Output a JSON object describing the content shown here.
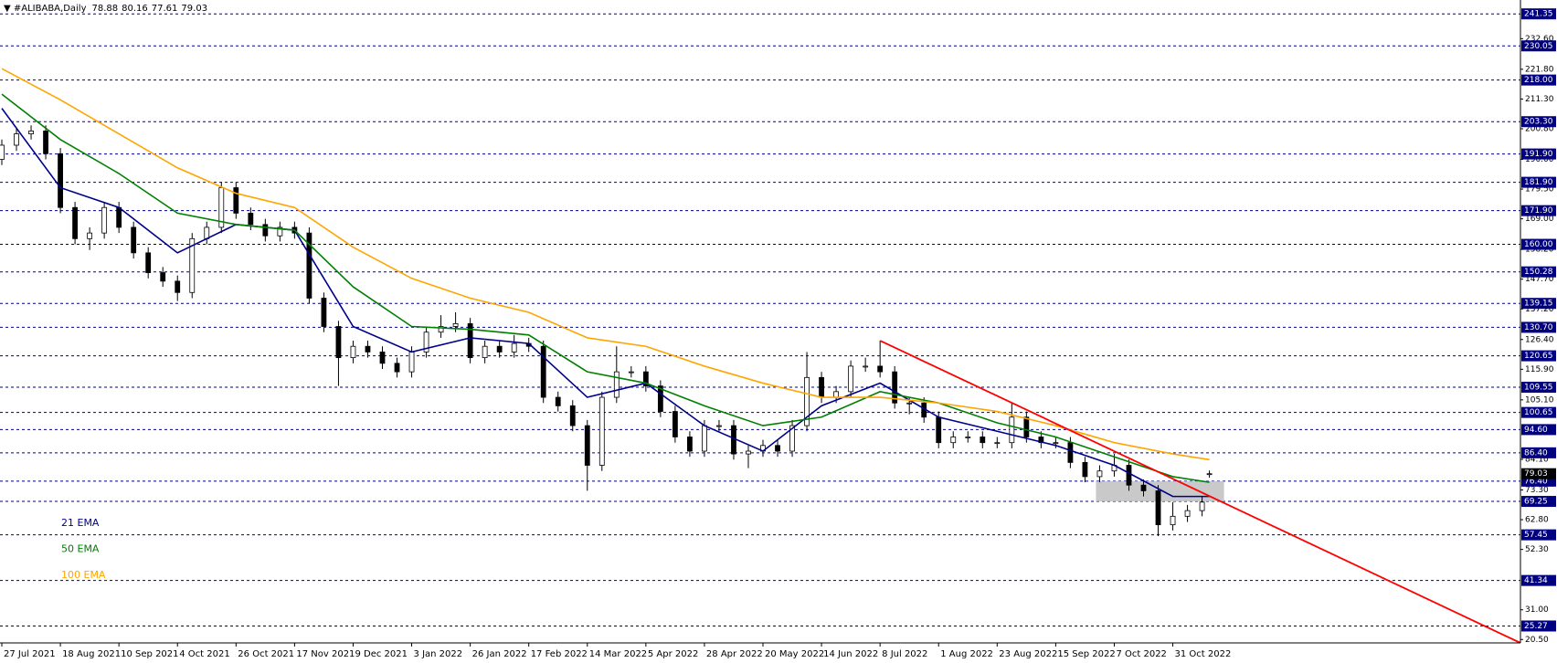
{
  "chart_data": {
    "type": "candlestick",
    "symbol": "#ALIBABA,Daily",
    "ohlc": {
      "open": 78.88,
      "high": 80.16,
      "low": 77.61,
      "close": 79.03
    },
    "last_price": 79.03,
    "xlim": [
      0,
      415
    ],
    "ylim": [
      19.3,
      246.25
    ],
    "xticks": [
      {
        "value": 0,
        "label": "27 Jul 2021"
      },
      {
        "value": 16,
        "label": "18 Aug 2021"
      },
      {
        "value": 32,
        "label": "10 Sep 2021"
      },
      {
        "value": 48,
        "label": "4 Oct 2021"
      },
      {
        "value": 64,
        "label": "26 Oct 2021"
      },
      {
        "value": 80,
        "label": "17 Nov 2021"
      },
      {
        "value": 96,
        "label": "9 Dec 2021"
      },
      {
        "value": 112,
        "label": "3 Jan 2022"
      },
      {
        "value": 128,
        "label": "26 Jan 2022"
      },
      {
        "value": 144,
        "label": "17 Feb 2022"
      },
      {
        "value": 160,
        "label": "14 Mar 2022"
      },
      {
        "value": 176,
        "label": "5 Apr 2022"
      },
      {
        "value": 192,
        "label": "28 Apr 2022"
      },
      {
        "value": 208,
        "label": "20 May 2022"
      },
      {
        "value": 224,
        "label": "14 Jun 2022"
      },
      {
        "value": 240,
        "label": "8 Jul 2022"
      },
      {
        "value": 256,
        "label": "1 Aug 2022"
      },
      {
        "value": 272,
        "label": "23 Aug 2022"
      },
      {
        "value": 288,
        "label": "15 Sep 2022"
      },
      {
        "value": 304,
        "label": "7 Oct 2022"
      },
      {
        "value": 320,
        "label": "31 Oct 2022"
      }
    ],
    "yticks": [
      {
        "value": 232.6,
        "label": "232.60"
      },
      {
        "value": 221.8,
        "label": "221.80"
      },
      {
        "value": 211.3,
        "label": "211.30"
      },
      {
        "value": 200.8,
        "label": "200.80"
      },
      {
        "value": 190,
        "label": "190.00"
      },
      {
        "value": 179.5,
        "label": "179.50"
      },
      {
        "value": 169,
        "label": "169.00"
      },
      {
        "value": 158.2,
        "label": "158.20"
      },
      {
        "value": 147.7,
        "label": "147.70"
      },
      {
        "value": 137.2,
        "label": "137.20"
      },
      {
        "value": 126.4,
        "label": "126.40"
      },
      {
        "value": 115.9,
        "label": "115.90"
      },
      {
        "value": 105.1,
        "label": "105.10"
      },
      {
        "value": 84.1,
        "label": "84.10"
      },
      {
        "value": 73.3,
        "label": "73.30"
      },
      {
        "value": 62.8,
        "label": "62.80"
      },
      {
        "value": 52.3,
        "label": "52.30"
      },
      {
        "value": 31,
        "label": "31.00"
      },
      {
        "value": 20.5,
        "label": "20.50"
      }
    ],
    "levels": [
      241.35,
      230.05,
      {
        "value": 218,
        "label": "218.00"
      },
      {
        "value": 203.3,
        "label": "203.30"
      },
      {
        "value": 191.9,
        "label": "191.90"
      },
      {
        "value": 181.9,
        "label": "181.90"
      },
      {
        "value": 171.9,
        "label": "171.90"
      },
      {
        "value": 160,
        "label": "160.00"
      },
      150.28,
      139.15,
      {
        "value": 130.7,
        "label": "130.70"
      },
      120.65,
      109.55,
      100.65,
      {
        "value": 94.6,
        "label": "94.60"
      },
      {
        "value": 86.4,
        "label": "86.40"
      },
      {
        "value": 76.4,
        "label": "76.40"
      },
      69.25,
      57.45,
      41.34,
      25.27
    ],
    "level_color": "#000080",
    "candles": {
      "x": [
        0,
        4,
        8,
        12,
        16,
        20,
        24,
        28,
        32,
        36,
        40,
        44,
        48,
        52,
        56,
        60,
        64,
        68,
        72,
        76,
        80,
        84,
        88,
        92,
        96,
        100,
        104,
        108,
        112,
        116,
        120,
        124,
        128,
        132,
        136,
        140,
        144,
        148,
        152,
        156,
        160,
        164,
        168,
        172,
        176,
        180,
        184,
        188,
        192,
        196,
        200,
        204,
        208,
        212,
        216,
        220,
        224,
        228,
        232,
        236,
        240,
        244,
        248,
        252,
        256,
        260,
        264,
        268,
        272,
        276,
        280,
        284,
        288,
        292,
        296,
        300,
        304,
        308,
        312,
        316,
        320,
        324,
        328,
        330
      ],
      "open": [
        190,
        195,
        199,
        200,
        192,
        173,
        162,
        164,
        173,
        166,
        157,
        150,
        147,
        143,
        162,
        166,
        180,
        171,
        167,
        163,
        166,
        164,
        141,
        131,
        120,
        124,
        122,
        118,
        115,
        122,
        129,
        131,
        132,
        120,
        124,
        122,
        125,
        124,
        106,
        103,
        96,
        82,
        106,
        115,
        115,
        110,
        101,
        92,
        87,
        96,
        96,
        86,
        87,
        89,
        87,
        96,
        113,
        106,
        108,
        117,
        117,
        115,
        104,
        104,
        99,
        90,
        92,
        92,
        90,
        90,
        99,
        92,
        90,
        90,
        83,
        78,
        80,
        82,
        75,
        73,
        61,
        64,
        66,
        78.88
      ],
      "high": [
        197,
        201,
        202,
        202,
        194,
        175,
        166,
        175,
        175,
        168,
        159,
        152,
        149,
        164,
        168,
        182,
        182,
        173,
        169,
        168,
        168,
        166,
        143,
        133,
        126,
        126,
        124,
        120,
        124,
        131,
        135,
        136,
        134,
        126,
        126,
        128,
        127,
        126,
        108,
        105,
        98,
        108,
        124,
        117,
        117,
        112,
        103,
        94,
        98,
        98,
        98,
        89,
        91,
        91,
        98,
        122,
        115,
        110,
        119,
        120,
        126,
        117,
        106,
        106,
        101,
        94,
        94,
        94,
        92,
        104,
        101,
        94,
        92,
        92,
        85,
        82,
        86,
        84,
        77,
        75,
        69,
        68,
        71,
        80.16
      ],
      "low": [
        188,
        193,
        197,
        190,
        171,
        160,
        158,
        162,
        164,
        155,
        148,
        145,
        140,
        141,
        160,
        164,
        169,
        165,
        161,
        161,
        162,
        139,
        129,
        110,
        118,
        120,
        116,
        113,
        113,
        120,
        127,
        129,
        118,
        118,
        120,
        120,
        122,
        104,
        101,
        94,
        73,
        80,
        104,
        113,
        108,
        99,
        90,
        85,
        85,
        94,
        84,
        81,
        85,
        85,
        85,
        94,
        104,
        104,
        106,
        115,
        113,
        102,
        100,
        97,
        88,
        88,
        90,
        88,
        88,
        88,
        90,
        88,
        88,
        81,
        76,
        76,
        78,
        73,
        71,
        57,
        59,
        62,
        64,
        77.61
      ],
      "close": [
        195,
        199,
        200,
        192,
        173,
        162,
        164,
        173,
        166,
        157,
        150,
        147,
        143,
        162,
        166,
        180,
        171,
        167,
        163,
        166,
        164,
        141,
        131,
        120,
        124,
        122,
        118,
        115,
        122,
        129,
        131,
        132,
        120,
        124,
        122,
        125,
        124,
        106,
        103,
        96,
        82,
        106,
        115,
        115,
        110,
        101,
        92,
        87,
        96,
        96,
        86,
        87,
        89,
        87,
        96,
        113,
        106,
        108,
        117,
        117,
        115,
        104,
        104,
        99,
        90,
        92,
        92,
        90,
        90,
        99,
        92,
        90,
        90,
        83,
        78,
        80,
        82,
        75,
        73,
        61,
        64,
        66,
        69,
        79.03
      ]
    },
    "series": [
      {
        "name": "21 EMA",
        "color": "#00008b",
        "x": [
          0,
          16,
          32,
          48,
          64,
          80,
          96,
          112,
          128,
          144,
          160,
          176,
          192,
          208,
          224,
          240,
          256,
          272,
          288,
          304,
          320,
          330
        ],
        "values": [
          208,
          180,
          173,
          157,
          167,
          165,
          131,
          122,
          127,
          125,
          106,
          111,
          96,
          87,
          103,
          111,
          99,
          94,
          89,
          82,
          71,
          71
        ]
      },
      {
        "name": "50 EMA",
        "color": "#008000",
        "x": [
          0,
          16,
          32,
          48,
          64,
          80,
          96,
          112,
          128,
          144,
          160,
          176,
          192,
          208,
          224,
          240,
          256,
          272,
          288,
          304,
          320,
          330
        ],
        "values": [
          213,
          197,
          185,
          171,
          167,
          165,
          145,
          131,
          130,
          128,
          115,
          111,
          103,
          96,
          99,
          108,
          104,
          97,
          92,
          85,
          78,
          76
        ]
      },
      {
        "name": "100 EMA",
        "color": "#ffa500",
        "x": [
          0,
          16,
          32,
          48,
          64,
          80,
          96,
          112,
          128,
          144,
          160,
          176,
          192,
          208,
          224,
          240,
          256,
          272,
          288,
          304,
          320,
          330
        ],
        "values": [
          222,
          211,
          199,
          187,
          178,
          173,
          159,
          148,
          141,
          136,
          127,
          124,
          117,
          111,
          106,
          106,
          104,
          101,
          96,
          90,
          86,
          84
        ]
      }
    ],
    "trendline": {
      "x": [
        240,
        415
      ],
      "y": [
        126,
        19.3
      ],
      "color": "#ff0000"
    },
    "zone": {
      "x": [
        299,
        334
      ],
      "y": [
        69.25,
        76.4
      ],
      "color": "#c0c0c0"
    }
  }
}
